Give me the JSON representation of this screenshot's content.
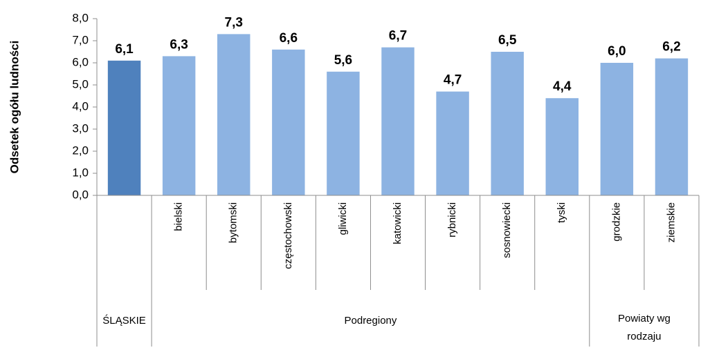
{
  "chart_data": {
    "type": "bar",
    "y_axis_label": "Odsetek ogółu ludności",
    "groups": [
      {
        "label": [
          "ŚLĄSKIE"
        ],
        "categories": [
          null
        ]
      },
      {
        "label": [
          "Podregiony"
        ],
        "categories": [
          "bielski",
          "bytomski",
          "częstochowski",
          "gliwicki",
          "katowicki",
          "rybnicki",
          "sosnowiecki",
          "tyski"
        ]
      },
      {
        "label": [
          "Powiaty wg",
          "rodzaju"
        ],
        "categories": [
          "grodzkie",
          "ziemskie"
        ]
      }
    ],
    "values": [
      6.1,
      6.3,
      7.3,
      6.6,
      5.6,
      6.7,
      4.7,
      6.5,
      4.4,
      6.0,
      6.2
    ],
    "value_labels": [
      "6,1",
      "6,3",
      "7,3",
      "6,6",
      "5,6",
      "6,7",
      "4,7",
      "6,5",
      "4,4",
      "6,0",
      "6,2"
    ],
    "colors": [
      "#4f81bd",
      "#8db3e2",
      "#8db3e2",
      "#8db3e2",
      "#8db3e2",
      "#8db3e2",
      "#8db3e2",
      "#8db3e2",
      "#8db3e2",
      "#8db3e2",
      "#8db3e2"
    ],
    "ylim": [
      0,
      8
    ],
    "yticks": [
      {
        "value": 0,
        "label": "0,0"
      },
      {
        "value": 1,
        "label": "1,0"
      },
      {
        "value": 2,
        "label": "2,0"
      },
      {
        "value": 3,
        "label": "3,0"
      },
      {
        "value": 4,
        "label": "4,0"
      },
      {
        "value": 5,
        "label": "5,0"
      },
      {
        "value": 6,
        "label": "6,0"
      },
      {
        "value": 7,
        "label": "7,0"
      },
      {
        "value": 8,
        "label": "8,0"
      }
    ],
    "grid": false
  }
}
